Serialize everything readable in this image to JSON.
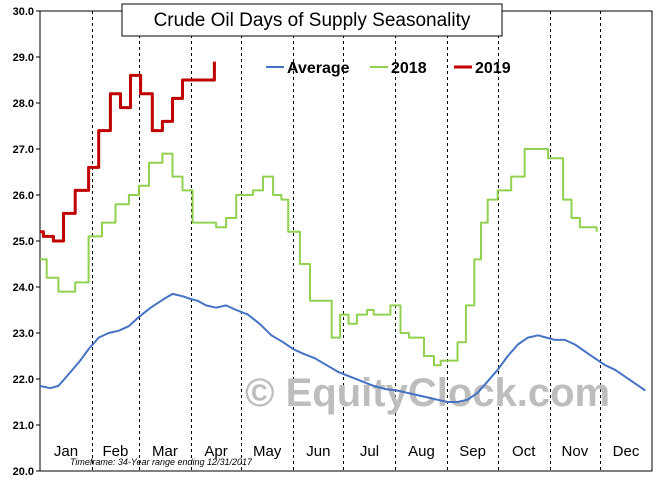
{
  "chart_data": {
    "type": "line",
    "title": "Crude Oil Days of Supply Seasonality",
    "footnote": "Timeframe: 34-Year range ending 12/31/2017",
    "watermark": "© EquityClock.com",
    "ylim": [
      20.0,
      30.0
    ],
    "yticks": [
      "20.0",
      "21.0",
      "22.0",
      "23.0",
      "24.0",
      "25.0",
      "26.0",
      "27.0",
      "28.0",
      "29.0",
      "30.0"
    ],
    "months": [
      "Jan",
      "Feb",
      "Mar",
      "Apr",
      "May",
      "Jun",
      "Jul",
      "Aug",
      "Sep",
      "Oct",
      "Nov",
      "Dec"
    ],
    "x_unit": "day of year (1-365)",
    "grid": "vertical dashed month separators",
    "legend_position": "top-right",
    "series": [
      {
        "name": "Average",
        "color": "#4472c4",
        "step": false,
        "x": [
          1,
          7,
          12,
          18,
          25,
          30,
          36,
          42,
          48,
          54,
          60,
          67,
          74,
          80,
          86,
          90,
          95,
          100,
          106,
          112,
          118,
          125,
          132,
          139,
          146,
          152,
          158,
          165,
          172,
          179,
          186,
          193,
          200,
          207,
          214,
          220,
          226,
          232,
          238,
          244,
          250,
          256,
          262,
          268,
          274,
          280,
          286,
          292,
          298,
          303,
          308,
          314,
          320,
          326,
          332,
          338,
          344,
          350,
          356,
          362
        ],
        "y": [
          21.85,
          21.8,
          21.85,
          22.1,
          22.4,
          22.65,
          22.9,
          23.0,
          23.05,
          23.15,
          23.35,
          23.55,
          23.72,
          23.85,
          23.8,
          23.75,
          23.7,
          23.6,
          23.55,
          23.6,
          23.5,
          23.4,
          23.2,
          22.95,
          22.8,
          22.65,
          22.55,
          22.45,
          22.3,
          22.15,
          22.05,
          21.95,
          21.85,
          21.78,
          21.75,
          21.7,
          21.65,
          21.6,
          21.55,
          21.5,
          21.5,
          21.55,
          21.7,
          21.95,
          22.2,
          22.5,
          22.75,
          22.9,
          22.95,
          22.9,
          22.85,
          22.85,
          22.75,
          22.6,
          22.45,
          22.3,
          22.2,
          22.05,
          21.9,
          21.75
        ]
      },
      {
        "name": "2018",
        "color": "#92d050",
        "step": true,
        "x": [
          1,
          5,
          12,
          22,
          30,
          38,
          46,
          54,
          60,
          66,
          74,
          80,
          86,
          92,
          99,
          106,
          112,
          118,
          124,
          128,
          134,
          140,
          145,
          149,
          152,
          156,
          162,
          166,
          168,
          175,
          180,
          185,
          190,
          196,
          200,
          204,
          210,
          216,
          221,
          225,
          230,
          236,
          240,
          245,
          250,
          255,
          260,
          264,
          268,
          274,
          282,
          290,
          298,
          304,
          313,
          318,
          323,
          333
        ],
        "y": [
          24.6,
          24.2,
          23.9,
          24.1,
          25.1,
          25.4,
          25.8,
          26.0,
          26.2,
          26.7,
          26.9,
          26.4,
          26.1,
          25.4,
          25.4,
          25.3,
          25.5,
          26.0,
          26.0,
          26.1,
          26.4,
          26.0,
          25.9,
          25.2,
          25.2,
          24.5,
          23.7,
          23.7,
          23.7,
          22.9,
          23.4,
          23.2,
          23.4,
          23.5,
          23.4,
          23.4,
          23.6,
          23.0,
          22.9,
          22.9,
          22.5,
          22.3,
          22.4,
          22.4,
          22.8,
          23.6,
          24.6,
          25.4,
          25.9,
          26.1,
          26.4,
          27.0,
          27.0,
          26.8,
          25.9,
          25.5,
          25.3,
          25.2
        ]
      },
      {
        "name": "2019",
        "color": "#c00000",
        "step": true,
        "x": [
          1,
          3,
          9,
          15,
          22,
          30,
          36,
          43,
          49,
          55,
          61,
          68,
          74,
          80,
          86,
          92,
          105
        ],
        "y": [
          25.2,
          25.1,
          25.0,
          25.6,
          26.1,
          26.6,
          27.4,
          28.2,
          27.9,
          28.6,
          28.2,
          27.4,
          27.6,
          28.1,
          28.5,
          28.5,
          28.9
        ]
      }
    ]
  }
}
